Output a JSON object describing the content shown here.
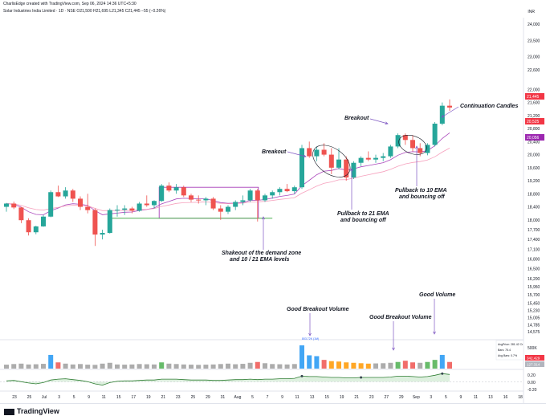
{
  "header": {
    "credit": "CharlisEdge created with TradingView.com, Sep 06, 2024 14:36 UTC+5:30",
    "symbol_line": "Solar Industries India Limited · 1D · NSE  O21,500 H21,695 L21,345 C21,445 −55 (−0.26%)",
    "currency": "INR"
  },
  "price_axis": {
    "ticks": [
      "24,000",
      "23,500",
      "23,000",
      "22,600",
      "22,000",
      "21,600",
      "21,200",
      "20,800",
      "20,400",
      "20,000",
      "19,600",
      "19,200",
      "18,800",
      "18,400",
      "18,000",
      "17,700",
      "17,400",
      "17,100",
      "16,800",
      "16,500",
      "16,200",
      "15,950",
      "15,700",
      "15,450",
      "15,230",
      "15,005",
      "14,785",
      "14,575"
    ],
    "labels": [
      {
        "text": "21,445",
        "color": "#f23645"
      },
      {
        "text": "20,525",
        "color": "#f23645"
      },
      {
        "text": "20,056",
        "color": "#9c27b0"
      }
    ]
  },
  "volume_panel": {
    "tick": "500K",
    "info_lines": [
      "AvgPrice: 281.42 Cr",
      "Bars: 75.4",
      "Avg Bars: 0.7%"
    ],
    "value_label": "342.429",
    "value_label2": "127.314",
    "spike_label": "803.72K (1M)"
  },
  "indicator_panel": {
    "ticks": [
      "0.20",
      "0.00",
      "-0.20"
    ]
  },
  "time_axis": {
    "ticks": [
      "23",
      "25",
      "Jul",
      "3",
      "5",
      "9",
      "11",
      "15",
      "17",
      "19",
      "21",
      "23",
      "25",
      "29",
      "31",
      "Aug",
      "5",
      "7",
      "9",
      "11",
      "13",
      "15",
      "19",
      "21",
      "23",
      "27",
      "29",
      "Sep",
      "3",
      "5",
      "9",
      "11",
      "13",
      "16",
      "18"
    ]
  },
  "annotations": {
    "breakout1": "Breakout",
    "breakout2": "Breakout",
    "continuation": "Continuation Candles",
    "pullback21_line1": "Pullback to 21 EMA",
    "pullback21_line2": "and bouncing off",
    "pullback10_line1": "Pullback to 10 EMA",
    "pullback10_line2": "and bouncing off",
    "shakeout_line1": "Shakeout of the demand zone",
    "shakeout_line2": "and 10 / 21 EMA levels",
    "vol1": "Good Breakout Volume",
    "vol2": "Good Breakout Volume",
    "vol3": "Good Volume"
  },
  "footer": {
    "brand": "TradingView"
  },
  "colors": {
    "up": "#26a69a",
    "down": "#ef5350",
    "ema10": "#9c27b0",
    "ema21": "#f48fb1",
    "demand_zone": "#9c27b0",
    "demand_line": "#4caf50",
    "annotation_line": "#7e57c2",
    "volume_up": "#2196f3",
    "volume_base": "#9e9e9e"
  },
  "chart_data": {
    "type": "candlestick",
    "series": [
      {
        "name": "price",
        "candles": [
          {
            "o": 18400,
            "h": 18520,
            "l": 18250,
            "c": 18500
          },
          {
            "o": 18500,
            "h": 18560,
            "l": 18330,
            "c": 18380
          },
          {
            "o": 18380,
            "h": 18400,
            "l": 17900,
            "c": 17990
          },
          {
            "o": 17990,
            "h": 18050,
            "l": 17520,
            "c": 17620
          },
          {
            "o": 17620,
            "h": 17820,
            "l": 17560,
            "c": 17800
          },
          {
            "o": 17800,
            "h": 18150,
            "l": 17790,
            "c": 18100
          },
          {
            "o": 18100,
            "h": 18900,
            "l": 18080,
            "c": 18850
          },
          {
            "o": 18850,
            "h": 19050,
            "l": 18700,
            "c": 18720
          },
          {
            "o": 18720,
            "h": 19000,
            "l": 18650,
            "c": 18900
          },
          {
            "o": 18900,
            "h": 18950,
            "l": 18550,
            "c": 18650
          },
          {
            "o": 18650,
            "h": 18720,
            "l": 18300,
            "c": 18400
          },
          {
            "o": 18400,
            "h": 18800,
            "l": 18200,
            "c": 18300
          },
          {
            "o": 18300,
            "h": 18350,
            "l": 17200,
            "c": 17550
          },
          {
            "o": 17550,
            "h": 17700,
            "l": 17400,
            "c": 17600
          },
          {
            "o": 17600,
            "h": 18350,
            "l": 17580,
            "c": 18300
          },
          {
            "o": 18300,
            "h": 18450,
            "l": 18100,
            "c": 18310
          },
          {
            "o": 18310,
            "h": 18450,
            "l": 18150,
            "c": 18350
          },
          {
            "o": 18350,
            "h": 18400,
            "l": 18200,
            "c": 18280
          },
          {
            "o": 18280,
            "h": 18550,
            "l": 18250,
            "c": 18500
          },
          {
            "o": 18500,
            "h": 18750,
            "l": 18400,
            "c": 18450
          },
          {
            "o": 18450,
            "h": 18600,
            "l": 18350,
            "c": 18580
          },
          {
            "o": 18580,
            "h": 19100,
            "l": 18550,
            "c": 19050
          },
          {
            "o": 19050,
            "h": 19150,
            "l": 18850,
            "c": 18900
          },
          {
            "o": 18900,
            "h": 19100,
            "l": 18800,
            "c": 19000
          },
          {
            "o": 19000,
            "h": 19050,
            "l": 18700,
            "c": 18750
          },
          {
            "o": 18750,
            "h": 18800,
            "l": 18550,
            "c": 18620
          },
          {
            "o": 18620,
            "h": 18750,
            "l": 18500,
            "c": 18600
          },
          {
            "o": 18600,
            "h": 18700,
            "l": 18450,
            "c": 18650
          },
          {
            "o": 18650,
            "h": 18700,
            "l": 18300,
            "c": 18350
          },
          {
            "o": 18350,
            "h": 18450,
            "l": 18000,
            "c": 18250
          },
          {
            "o": 18250,
            "h": 18450,
            "l": 18180,
            "c": 18400
          },
          {
            "o": 18400,
            "h": 18600,
            "l": 18300,
            "c": 18550
          },
          {
            "o": 18550,
            "h": 18750,
            "l": 18450,
            "c": 18600
          },
          {
            "o": 18600,
            "h": 18950,
            "l": 18550,
            "c": 18900
          },
          {
            "o": 18900,
            "h": 18950,
            "l": 17950,
            "c": 18600
          },
          {
            "o": 18600,
            "h": 18800,
            "l": 18550,
            "c": 18750
          },
          {
            "o": 18750,
            "h": 18900,
            "l": 18650,
            "c": 18850
          },
          {
            "o": 18850,
            "h": 19000,
            "l": 18750,
            "c": 18950
          },
          {
            "o": 18950,
            "h": 19100,
            "l": 18850,
            "c": 18880
          },
          {
            "o": 18880,
            "h": 19050,
            "l": 18800,
            "c": 19000
          },
          {
            "o": 19000,
            "h": 20300,
            "l": 18950,
            "c": 20200
          },
          {
            "o": 20200,
            "h": 20400,
            "l": 19900,
            "c": 19950
          },
          {
            "o": 19950,
            "h": 20250,
            "l": 19800,
            "c": 20150
          },
          {
            "o": 20150,
            "h": 20350,
            "l": 19950,
            "c": 20000
          },
          {
            "o": 20000,
            "h": 20200,
            "l": 19400,
            "c": 19600
          },
          {
            "o": 19600,
            "h": 20200,
            "l": 19550,
            "c": 19850
          },
          {
            "o": 19850,
            "h": 19950,
            "l": 19200,
            "c": 19300
          },
          {
            "o": 19300,
            "h": 19800,
            "l": 19250,
            "c": 19750
          },
          {
            "o": 19750,
            "h": 19950,
            "l": 19650,
            "c": 19900
          },
          {
            "o": 19900,
            "h": 20100,
            "l": 19800,
            "c": 19850
          },
          {
            "o": 19850,
            "h": 20000,
            "l": 19750,
            "c": 19900
          },
          {
            "o": 19900,
            "h": 20050,
            "l": 19800,
            "c": 19950
          },
          {
            "o": 19950,
            "h": 20300,
            "l": 19900,
            "c": 20250
          },
          {
            "o": 20250,
            "h": 20650,
            "l": 20200,
            "c": 20600
          },
          {
            "o": 20600,
            "h": 20650,
            "l": 20300,
            "c": 20450
          },
          {
            "o": 20450,
            "h": 20600,
            "l": 20100,
            "c": 20200
          },
          {
            "o": 20200,
            "h": 20350,
            "l": 19950,
            "c": 20050
          },
          {
            "o": 20050,
            "h": 20350,
            "l": 19980,
            "c": 20300
          },
          {
            "o": 20300,
            "h": 21000,
            "l": 20250,
            "c": 20950
          },
          {
            "o": 20950,
            "h": 21600,
            "l": 20900,
            "c": 21500
          },
          {
            "o": 21500,
            "h": 21695,
            "l": 21345,
            "c": 21445
          }
        ]
      }
    ],
    "volume": [
      95,
      110,
      120,
      100,
      105,
      115,
      330,
      150,
      120,
      100,
      110,
      95,
      90,
      120,
      140,
      100,
      95,
      100,
      110,
      105,
      100,
      150,
      120,
      110,
      100,
      95,
      90,
      95,
      100,
      110,
      120,
      105,
      115,
      140,
      160,
      130,
      110,
      105,
      100,
      110,
      560,
      320,
      300,
      210,
      180,
      170,
      150,
      140,
      130,
      120,
      125,
      130,
      140,
      160,
      190,
      150,
      140,
      160,
      210,
      330,
      160
    ],
    "indicator": [
      0.02,
      0.03,
      0.0,
      -0.03,
      -0.05,
      -0.02,
      0.04,
      0.06,
      0.07,
      0.05,
      0.03,
      0.0,
      -0.05,
      -0.08,
      -0.02,
      0.01,
      0.02,
      0.02,
      0.03,
      0.04,
      0.04,
      0.06,
      0.06,
      0.06,
      0.05,
      0.04,
      0.04,
      0.04,
      0.03,
      0.03,
      0.04,
      0.05,
      0.05,
      0.06,
      0.05,
      0.06,
      0.06,
      0.07,
      0.07,
      0.08,
      0.13,
      0.12,
      0.12,
      0.11,
      0.1,
      0.1,
      0.09,
      0.09,
      0.1,
      0.1,
      0.1,
      0.1,
      0.11,
      0.13,
      0.13,
      0.12,
      0.11,
      0.12,
      0.15,
      0.19,
      0.17
    ],
    "ylim": [
      14575,
      24000
    ]
  }
}
